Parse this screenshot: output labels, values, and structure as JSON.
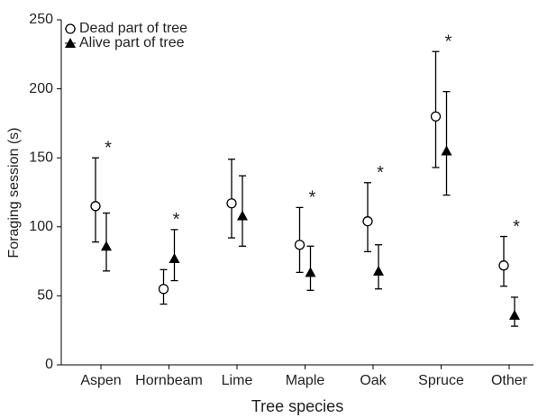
{
  "chart_data": {
    "type": "errorbar",
    "xlabel": "Tree species",
    "ylabel": "Foraging session (s)",
    "categories": [
      "Aspen",
      "Hornbeam",
      "Lime",
      "Maple",
      "Oak",
      "Spruce",
      "Other"
    ],
    "series": [
      {
        "name": "Dead part of tree",
        "marker": "circle",
        "color": "#000000",
        "values": [
          115,
          55,
          117,
          87,
          104,
          180,
          72
        ],
        "lower": [
          89,
          44,
          92,
          67,
          82,
          143,
          57
        ],
        "upper": [
          150,
          69,
          149,
          114,
          132,
          227,
          93
        ]
      },
      {
        "name": "Alive part of tree",
        "marker": "triangle",
        "color": "#000000",
        "values": [
          86,
          77,
          108,
          67,
          68,
          155,
          36
        ],
        "lower": [
          68,
          61,
          86,
          54,
          55,
          123,
          28
        ],
        "upper": [
          110,
          98,
          137,
          86,
          87,
          198,
          49
        ]
      }
    ],
    "significance": [
      "*",
      "*",
      null,
      "*",
      "*",
      "*",
      "*"
    ],
    "ylim": [
      0,
      250
    ],
    "yticks": [
      0,
      50,
      100,
      150,
      200,
      250
    ],
    "legend": "upper left"
  }
}
